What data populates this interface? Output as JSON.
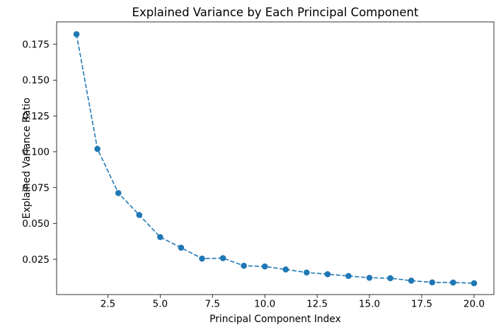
{
  "figure": {
    "background": "#ffffff"
  },
  "chart_data": {
    "type": "line",
    "title": "Explained Variance by Each Principal Component",
    "xlabel": "Principal Component Index",
    "ylabel": "Explained Variance Ratio",
    "series": [
      {
        "name": "explained-variance-ratio",
        "x": [
          1,
          2,
          3,
          4,
          5,
          6,
          7,
          8,
          9,
          10,
          11,
          12,
          13,
          14,
          15,
          16,
          17,
          18,
          19,
          20
        ],
        "y": [
          0.182,
          0.102,
          0.0712,
          0.0559,
          0.0405,
          0.0331,
          0.0255,
          0.0258,
          0.0205,
          0.02,
          0.0179,
          0.0158,
          0.0146,
          0.0134,
          0.0121,
          0.0118,
          0.0101,
          0.0089,
          0.0088,
          0.0083
        ]
      }
    ],
    "xlim": [
      0.05,
      20.95
    ],
    "ylim": [
      0.0004,
      0.1906
    ],
    "xticks": {
      "values": [
        2.5,
        5.0,
        7.5,
        10.0,
        12.5,
        15.0,
        17.5,
        20.0
      ],
      "labels": [
        "2.5",
        "5.0",
        "7.5",
        "10.0",
        "12.5",
        "15.0",
        "17.5",
        "20.0"
      ]
    },
    "yticks": {
      "values": [
        0.025,
        0.05,
        0.075,
        0.1,
        0.125,
        0.15,
        0.175
      ],
      "labels": [
        "0.025",
        "0.050",
        "0.075",
        "0.100",
        "0.125",
        "0.150",
        "0.175"
      ]
    },
    "style": {
      "line_color": "#1f77b4",
      "marker_color": "#1f77b4",
      "line_style": "dashed",
      "marker": "circle",
      "spine_color": "#000000",
      "text_color": "#000000",
      "grid": false,
      "legend": false,
      "background": "#ffffff"
    }
  }
}
